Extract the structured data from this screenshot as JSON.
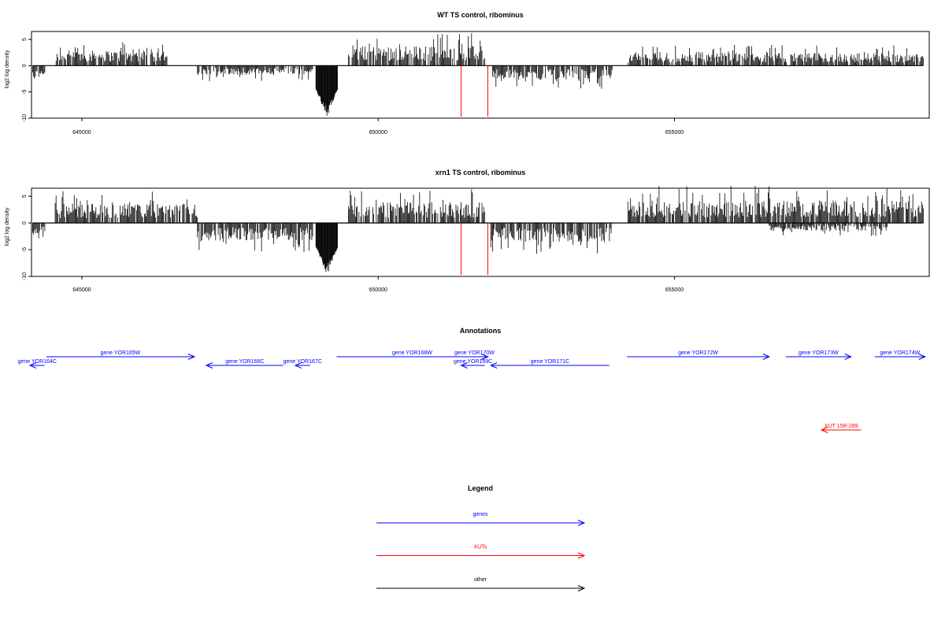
{
  "chart_data": [
    {
      "type": "bar",
      "title": "WT TS control, ribominus",
      "xlabel": "",
      "ylabel": "log2 log density",
      "xlim": [
        644150,
        659300
      ],
      "ylim": [
        -10,
        6.5
      ],
      "xticks": [
        645000,
        650000,
        655000
      ],
      "xtick_labels": [
        "645000",
        "650000",
        "655000"
      ],
      "yticks": [
        5,
        0,
        -5,
        -10
      ],
      "ytick_labels": [
        "5",
        "0",
        "-5",
        "-10"
      ],
      "grid": false,
      "reference_lines": [
        {
          "x": 651400,
          "color": "#ff0000"
        },
        {
          "x": 651850,
          "color": "#ff0000"
        }
      ],
      "signal_segments": [
        {
          "strand": "minus",
          "x_start": 644170,
          "x_end": 644380,
          "peak": -4.5
        },
        {
          "strand": "plus",
          "x_start": 644550,
          "x_end": 646450,
          "peak": 4.8
        },
        {
          "strand": "minus",
          "x_start": 646950,
          "x_end": 648900,
          "peak": -3.0
        },
        {
          "strand": "minus",
          "x_start": 648950,
          "x_end": 649320,
          "peak": -10.0
        },
        {
          "strand": "plus",
          "x_start": 649500,
          "x_end": 651800,
          "peak": 6.2
        },
        {
          "strand": "minus",
          "x_start": 651900,
          "x_end": 653950,
          "peak": -4.5
        },
        {
          "strand": "plus",
          "x_start": 654200,
          "x_end": 659200,
          "peak": 4.0
        }
      ]
    },
    {
      "type": "bar",
      "title": "xrn1 TS control, ribominus",
      "xlabel": "",
      "ylabel": "log2 log density",
      "xlim": [
        644150,
        659300
      ],
      "ylim": [
        -10,
        6.5
      ],
      "xticks": [
        645000,
        650000,
        655000
      ],
      "xtick_labels": [
        "645000",
        "650000",
        "655000"
      ],
      "yticks": [
        5,
        0,
        -5,
        -10
      ],
      "ytick_labels": [
        "5",
        "0",
        "-5",
        "-10"
      ],
      "grid": false,
      "reference_lines": [
        {
          "x": 651400,
          "color": "#ff0000"
        },
        {
          "x": 651850,
          "color": "#ff0000"
        }
      ],
      "signal_segments": [
        {
          "strand": "minus",
          "x_start": 644170,
          "x_end": 644380,
          "peak": -4.5
        },
        {
          "strand": "plus",
          "x_start": 644550,
          "x_end": 646950,
          "peak": 6.0
        },
        {
          "strand": "minus",
          "x_start": 646950,
          "x_end": 648900,
          "peak": -5.5
        },
        {
          "strand": "minus",
          "x_start": 648950,
          "x_end": 649320,
          "peak": -10.0
        },
        {
          "strand": "plus",
          "x_start": 649500,
          "x_end": 651800,
          "peak": 6.5
        },
        {
          "strand": "minus",
          "x_start": 651900,
          "x_end": 653950,
          "peak": -6.0
        },
        {
          "strand": "plus",
          "x_start": 654200,
          "x_end": 659200,
          "peak": 7.0
        },
        {
          "strand": "minus",
          "x_start": 656600,
          "x_end": 658600,
          "peak": -2.5
        }
      ]
    },
    {
      "type": "other",
      "title": "Annotations",
      "features": [
        {
          "label": "gene YOR164C",
          "color": "#0000ff",
          "direction": "left",
          "x_start": 643350,
          "x_end": 644370,
          "row": 1
        },
        {
          "label": "gene YOR165W",
          "color": "#0000ff",
          "direction": "right",
          "x_start": 644400,
          "x_end": 646900,
          "row": 0
        },
        {
          "label": "gene YOR166C",
          "color": "#0000ff",
          "direction": "left",
          "x_start": 647100,
          "x_end": 648400,
          "row": 1
        },
        {
          "label": "gene YOR167C",
          "color": "#0000ff",
          "direction": "left",
          "x_start": 648600,
          "x_end": 648850,
          "row": 1
        },
        {
          "label": "gene YOR168W",
          "color": "#0000ff",
          "direction": "right",
          "x_start": 649300,
          "x_end": 651850,
          "row": 0
        },
        {
          "label": "gene YOR169C",
          "color": "#0000ff",
          "direction": "left",
          "x_start": 651400,
          "x_end": 651800,
          "row": 1
        },
        {
          "label": "gene YOR170W",
          "color": "#0000ff",
          "direction": "right",
          "x_start": 651400,
          "x_end": 651850,
          "row": 0
        },
        {
          "label": "gene YOR171C",
          "color": "#0000ff",
          "direction": "left",
          "x_start": 651900,
          "x_end": 653900,
          "row": 1
        },
        {
          "label": "gene YOR172W",
          "color": "#0000ff",
          "direction": "right",
          "x_start": 654200,
          "x_end": 656600,
          "row": 0
        },
        {
          "label": "gene YOR173W",
          "color": "#0000ff",
          "direction": "right",
          "x_start": 656880,
          "x_end": 657980,
          "row": 0
        },
        {
          "label": "gene YOR174W",
          "color": "#0000ff",
          "direction": "right",
          "x_start": 658380,
          "x_end": 659230,
          "row": 0
        },
        {
          "label": "XUT 15R-289",
          "color": "#ff0000",
          "direction": "left",
          "x_start": 657480,
          "x_end": 658150,
          "row": 2
        }
      ]
    },
    {
      "type": "other",
      "title": "Legend",
      "entries": [
        {
          "label": "genes",
          "color": "#0000ff"
        },
        {
          "label": "XUTs",
          "color": "#ff0000"
        },
        {
          "label": "other",
          "color": "#000000"
        }
      ]
    }
  ]
}
